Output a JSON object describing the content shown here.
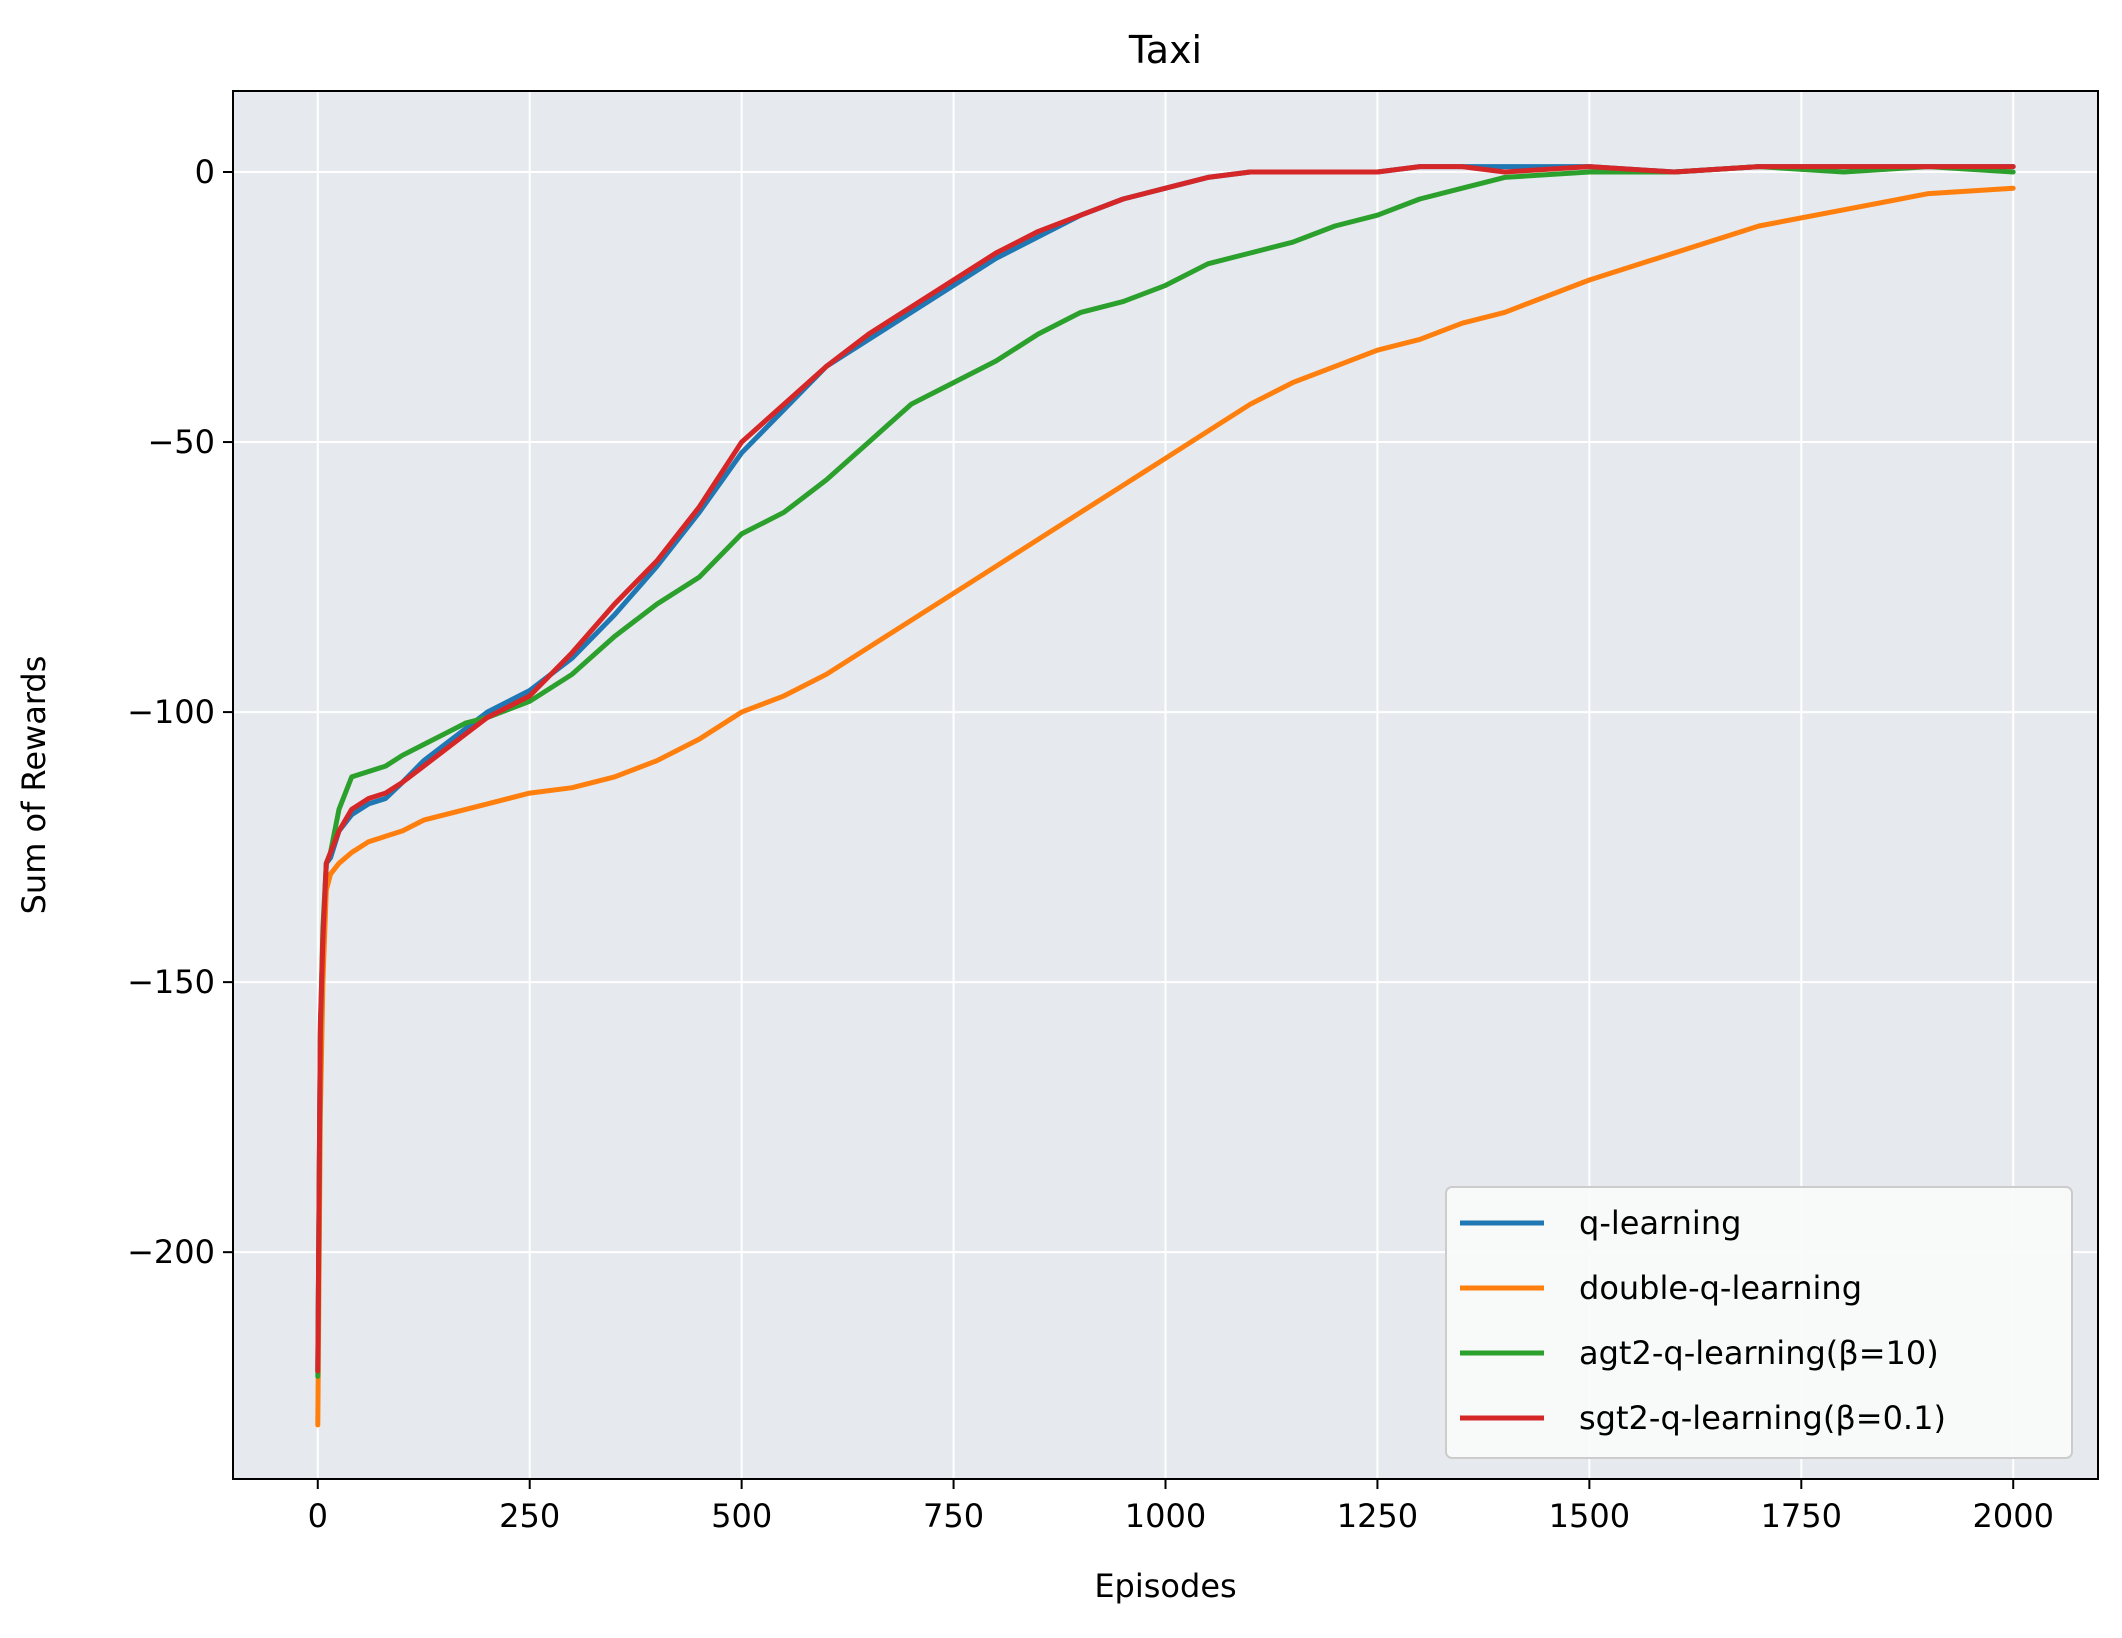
{
  "chart_data": {
    "type": "line",
    "title": "Taxi",
    "xlabel": "Episodes",
    "ylabel": "Sum of Rewards",
    "xlim": [
      -100,
      2100
    ],
    "ylim": [
      -242,
      15
    ],
    "x_ticks": [
      0,
      250,
      500,
      750,
      1000,
      1250,
      1500,
      1750,
      2000
    ],
    "x_tick_labels": [
      "0",
      "250",
      "500",
      "750",
      "1000",
      "1250",
      "1500",
      "1750",
      "2000"
    ],
    "y_ticks": [
      0,
      -50,
      -100,
      -150,
      -200
    ],
    "y_tick_labels": [
      "0",
      "−50",
      "−100",
      "−150",
      "−200"
    ],
    "grid": true,
    "legend_position": "bottom-right",
    "background": "#e6e9ee",
    "series": [
      {
        "name": "q-learning",
        "color": "#1f77b4",
        "x": [
          0,
          3,
          6,
          10,
          15,
          25,
          40,
          60,
          80,
          100,
          125,
          150,
          175,
          200,
          250,
          300,
          350,
          400,
          450,
          500,
          550,
          600,
          650,
          700,
          750,
          800,
          850,
          900,
          950,
          1000,
          1050,
          1100,
          1150,
          1200,
          1250,
          1300,
          1350,
          1400,
          1500,
          1600,
          1700,
          1800,
          1900,
          2000
        ],
        "y": [
          -222,
          -160,
          -145,
          -128,
          -127,
          -122,
          -119,
          -117,
          -116,
          -113,
          -109,
          -106,
          -103,
          -100,
          -96,
          -90,
          -82,
          -73,
          -63,
          -52,
          -44,
          -36,
          -31,
          -26,
          -21,
          -16,
          -12,
          -8,
          -5,
          -3,
          -1,
          0,
          0,
          0,
          0,
          1,
          1,
          1,
          1,
          0,
          1,
          1,
          1,
          1
        ]
      },
      {
        "name": "double-q-learning",
        "color": "#ff7f0e",
        "x": [
          0,
          3,
          6,
          10,
          15,
          25,
          40,
          60,
          80,
          100,
          125,
          150,
          175,
          200,
          250,
          300,
          350,
          400,
          450,
          500,
          550,
          600,
          650,
          700,
          750,
          800,
          850,
          900,
          950,
          1000,
          1050,
          1100,
          1150,
          1200,
          1250,
          1300,
          1350,
          1400,
          1500,
          1600,
          1700,
          1800,
          1900,
          2000
        ],
        "y": [
          -232,
          -175,
          -150,
          -133,
          -130,
          -128,
          -126,
          -124,
          -123,
          -122,
          -120,
          -119,
          -118,
          -117,
          -115,
          -114,
          -112,
          -109,
          -105,
          -100,
          -97,
          -93,
          -88,
          -83,
          -78,
          -73,
          -68,
          -63,
          -58,
          -53,
          -48,
          -43,
          -39,
          -36,
          -33,
          -31,
          -28,
          -26,
          -20,
          -15,
          -10,
          -7,
          -4,
          -3
        ]
      },
      {
        "name": "agt2-q-learning(β=10)",
        "color": "#2ca02c",
        "x": [
          0,
          3,
          6,
          10,
          15,
          25,
          40,
          60,
          80,
          100,
          125,
          150,
          175,
          200,
          250,
          300,
          350,
          400,
          450,
          500,
          550,
          600,
          650,
          700,
          750,
          800,
          850,
          900,
          950,
          1000,
          1050,
          1100,
          1150,
          1200,
          1250,
          1300,
          1350,
          1400,
          1500,
          1600,
          1700,
          1800,
          1900,
          2000
        ],
        "y": [
          -223,
          -160,
          -140,
          -128,
          -126,
          -118,
          -112,
          -111,
          -110,
          -108,
          -106,
          -104,
          -102,
          -101,
          -98,
          -93,
          -86,
          -80,
          -75,
          -67,
          -63,
          -57,
          -50,
          -43,
          -39,
          -35,
          -30,
          -26,
          -24,
          -21,
          -17,
          -15,
          -13,
          -10,
          -8,
          -5,
          -3,
          -1,
          0,
          0,
          1,
          0,
          1,
          0
        ]
      },
      {
        "name": "sgt2-q-learning(β=0.1)",
        "color": "#d62728",
        "x": [
          0,
          3,
          6,
          10,
          15,
          25,
          40,
          60,
          80,
          100,
          125,
          150,
          175,
          200,
          250,
          300,
          350,
          400,
          450,
          500,
          550,
          600,
          650,
          700,
          750,
          800,
          850,
          900,
          950,
          1000,
          1050,
          1100,
          1150,
          1200,
          1250,
          1300,
          1350,
          1400,
          1500,
          1600,
          1700,
          1800,
          1900,
          2000
        ],
        "y": [
          -222,
          -158,
          -142,
          -128,
          -126,
          -122,
          -118,
          -116,
          -115,
          -113,
          -110,
          -107,
          -104,
          -101,
          -97,
          -89,
          -80,
          -72,
          -62,
          -50,
          -43,
          -36,
          -30,
          -25,
          -20,
          -15,
          -11,
          -8,
          -5,
          -3,
          -1,
          0,
          0,
          0,
          0,
          1,
          1,
          0,
          1,
          0,
          1,
          1,
          1,
          1
        ]
      }
    ]
  }
}
